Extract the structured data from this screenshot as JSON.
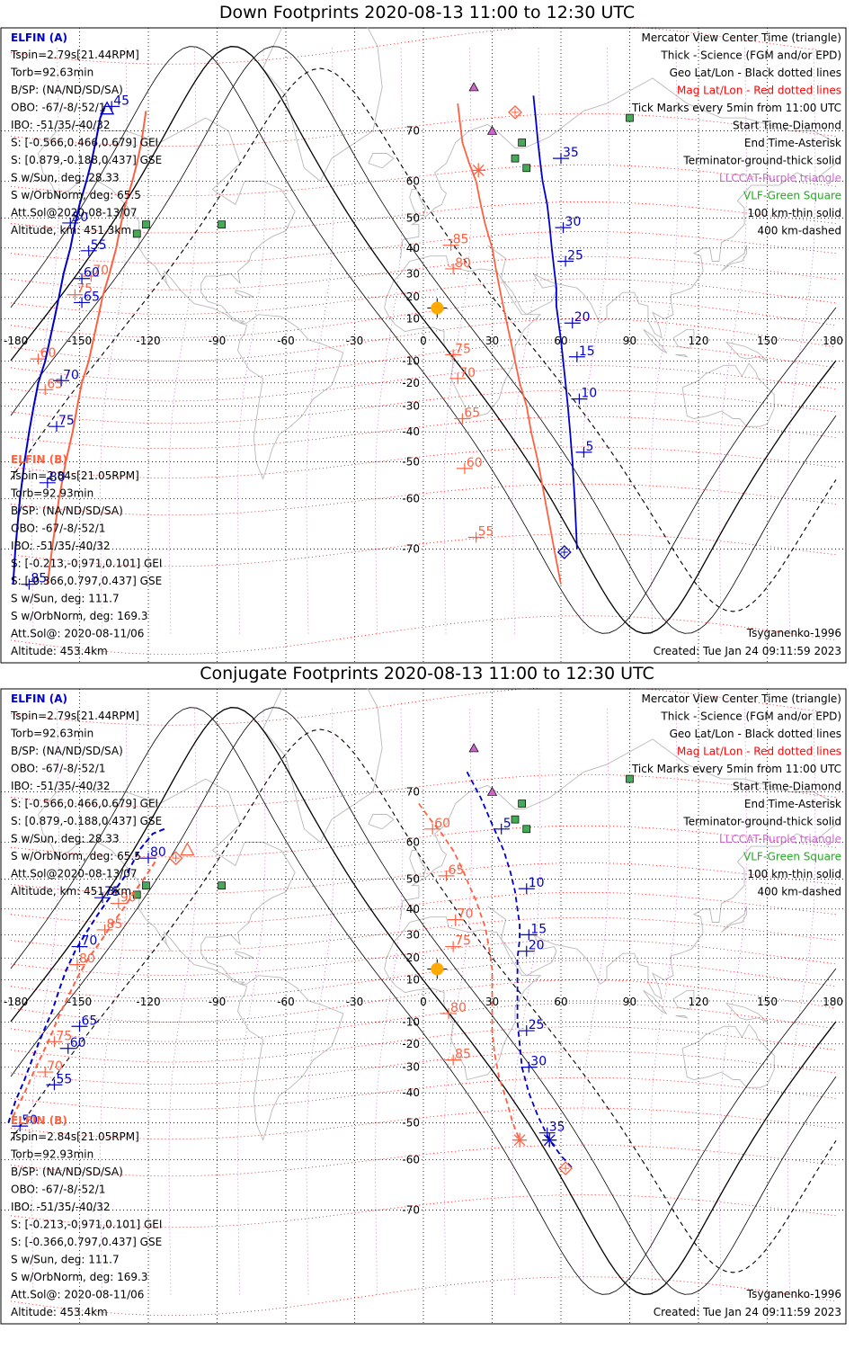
{
  "panels": [
    {
      "title": "Down Footprints 2020-08-13 11:00 to 12:30 UTC",
      "footer_model": "Tsyganenko-1996",
      "footer_created": "Created: Tue Jan 24 09:11:59 2023",
      "track_style": "solid",
      "lat_ticks": [
        "70",
        "60",
        "50",
        "40",
        "30",
        "20",
        "10",
        "-10",
        "-20",
        "-30",
        "-40",
        "-50",
        "-60",
        "-70"
      ],
      "lon_ticks": [
        "-180",
        "-150",
        "-120",
        "-90",
        "-60",
        "-30",
        "0",
        "30",
        "60",
        "90",
        "120",
        "150",
        "180"
      ],
      "track_a": {
        "points": [
          [
            -139,
            73.5
          ],
          [
            -141,
            72
          ],
          [
            -143,
            68
          ],
          [
            -145,
            64
          ],
          [
            -147,
            60
          ],
          [
            -150,
            54
          ],
          [
            -152,
            48
          ],
          [
            -154,
            40
          ],
          [
            -157,
            30
          ],
          [
            -159,
            20
          ],
          [
            -161,
            10
          ],
          [
            -163,
            0
          ],
          [
            -165,
            -10
          ],
          [
            -168,
            -20
          ],
          [
            -170,
            -30
          ],
          [
            -172,
            -40
          ],
          [
            -174,
            -50
          ],
          [
            -176,
            -60
          ],
          [
            -178,
            -70
          ],
          [
            -179,
            -75
          ]
        ],
        "labels": [
          {
            "text": "45",
            "lon": -136,
            "lat": 73.6
          },
          {
            "text": "50",
            "lon": -154,
            "lat": 48.5
          },
          {
            "text": "55",
            "lon": -146,
            "lat": 39
          },
          {
            "text": "60",
            "lon": -149,
            "lat": 28
          },
          {
            "text": "65",
            "lon": -149,
            "lat": 17.5
          },
          {
            "text": "70",
            "lon": -158,
            "lat": -19
          },
          {
            "text": "75",
            "lon": -160,
            "lat": -38
          },
          {
            "text": "80",
            "lon": -164,
            "lat": -56
          },
          {
            "text": "85",
            "lon": -172,
            "lat": -75
          }
        ]
      },
      "track_b": {
        "points": [
          [
            -121,
            73
          ],
          [
            -123,
            68
          ],
          [
            -125,
            64
          ],
          [
            -127,
            60
          ],
          [
            -130,
            54
          ],
          [
            -132,
            48
          ],
          [
            -134,
            40
          ],
          [
            -137,
            30
          ],
          [
            -140,
            20
          ],
          [
            -142,
            10
          ],
          [
            -144,
            0
          ],
          [
            -146,
            -10
          ],
          [
            -149,
            -20
          ],
          [
            -151,
            -30
          ],
          [
            -153,
            -40
          ],
          [
            -156,
            -50
          ],
          [
            -159,
            -60
          ],
          [
            -162,
            -70
          ],
          [
            -164,
            -75
          ]
        ],
        "labels": [
          {
            "text": "60",
            "lon": -168,
            "lat": -9
          },
          {
            "text": "65",
            "lon": -165,
            "lat": -23
          },
          {
            "text": "70",
            "lon": -145,
            "lat": 29
          },
          {
            "text": "75",
            "lon": -152,
            "lat": 21
          }
        ]
      },
      "track_c": {
        "points": [
          [
            15,
            74
          ],
          [
            17,
            68
          ],
          [
            20,
            64
          ],
          [
            23,
            60
          ],
          [
            25,
            54
          ],
          [
            27,
            48
          ],
          [
            30,
            40
          ],
          [
            32,
            30
          ],
          [
            34,
            20
          ],
          [
            36,
            10
          ],
          [
            38,
            0
          ],
          [
            40,
            -10
          ],
          [
            42,
            -20
          ],
          [
            45,
            -30
          ],
          [
            47,
            -40
          ],
          [
            50,
            -50
          ],
          [
            53,
            -60
          ],
          [
            57,
            -70
          ],
          [
            60,
            -75
          ]
        ],
        "labels": [
          {
            "text": "85",
            "lon": 12,
            "lat": 41
          },
          {
            "text": "80",
            "lon": 13,
            "lat": 32
          },
          {
            "text": "75",
            "lon": 13,
            "lat": -7
          },
          {
            "text": "70",
            "lon": 15,
            "lat": -18
          },
          {
            "text": "65",
            "lon": 17,
            "lat": -35
          },
          {
            "text": "60",
            "lon": 18,
            "lat": -52
          },
          {
            "text": "55",
            "lon": 23,
            "lat": -68
          }
        ]
      },
      "track_d": {
        "points": [
          [
            48,
            75
          ],
          [
            49,
            72
          ],
          [
            50,
            68
          ],
          [
            51,
            64
          ],
          [
            52,
            60
          ],
          [
            54,
            54
          ],
          [
            55,
            48
          ],
          [
            56,
            40
          ],
          [
            57,
            32
          ],
          [
            58,
            24
          ],
          [
            58,
            16
          ],
          [
            59,
            8
          ],
          [
            60,
            0
          ],
          [
            61,
            -10
          ],
          [
            62,
            -20
          ],
          [
            63,
            -30
          ],
          [
            64,
            -40
          ],
          [
            65,
            -50
          ],
          [
            66,
            -60
          ],
          [
            67,
            -70
          ]
        ],
        "labels": [
          {
            "text": "35",
            "lon": 60,
            "lat": 65
          },
          {
            "text": "30",
            "lon": 61,
            "lat": 47
          },
          {
            "text": "25",
            "lon": 62,
            "lat": 35
          },
          {
            "text": "20",
            "lon": 65,
            "lat": 8
          },
          {
            "text": "15",
            "lon": 67,
            "lat": -8
          },
          {
            "text": "10",
            "lon": 68,
            "lat": -27
          },
          {
            "text": "5",
            "lon": 70,
            "lat": -47
          }
        ]
      },
      "start_markers": [
        {
          "lon": 40,
          "lat": 72.8,
          "color": "#ff6040"
        },
        {
          "lon": 61.5,
          "lat": -70.5,
          "color": "#0000cc"
        }
      ],
      "end_markers": [
        {
          "lon": 24,
          "lat": 62.5,
          "color": "#ff6040"
        }
      ],
      "center_markers": [
        {
          "lon": -138,
          "lat": 73.2,
          "color": "#0000cc"
        }
      ],
      "sun": {
        "lon": 6,
        "lat": 15
      }
    },
    {
      "title": "Conjugate Footprints 2020-08-13 11:00 to 12:30 UTC",
      "footer_model": "Tsyganenko-1996",
      "footer_created": "Created: Tue Jan 24 09:11:59 2023",
      "track_style": "dashed",
      "lat_ticks": [
        "70",
        "60",
        "50",
        "40",
        "30",
        "20",
        "10",
        "-10",
        "-20",
        "-30",
        "-40",
        "-50",
        "-60",
        "-70"
      ],
      "lon_ticks": [
        "-180",
        "-150",
        "-120",
        "-90",
        "-60",
        "-30",
        "0",
        "30",
        "60",
        "90",
        "120",
        "150",
        "180"
      ],
      "track_a": {
        "points": [
          [
            -113,
            63
          ],
          [
            -118,
            62
          ],
          [
            -124,
            58
          ],
          [
            -129,
            52
          ],
          [
            -136,
            45
          ],
          [
            -142,
            38
          ],
          [
            -147,
            31
          ],
          [
            -152,
            23
          ],
          [
            -156,
            14
          ],
          [
            -159,
            5
          ],
          [
            -162,
            -5
          ],
          [
            -166,
            -15
          ],
          [
            -170,
            -25
          ],
          [
            -174,
            -35
          ],
          [
            -178,
            -43
          ],
          [
            -181,
            -50
          ]
        ],
        "labels": [
          {
            "text": "80",
            "lon": -120,
            "lat": 56
          },
          {
            "text": "75",
            "lon": -140,
            "lat": 44
          },
          {
            "text": "70",
            "lon": -150,
            "lat": 25
          },
          {
            "text": "65",
            "lon": -150,
            "lat": -12
          },
          {
            "text": "60",
            "lon": -155,
            "lat": -22
          },
          {
            "text": "55",
            "lon": -161,
            "lat": -37
          },
          {
            "text": "50",
            "lon": -176,
            "lat": -51
          }
        ]
      },
      "track_b": {
        "points": [
          [
            -117,
            55
          ],
          [
            -121,
            51
          ],
          [
            -126,
            46
          ],
          [
            -131,
            40
          ],
          [
            -136,
            34
          ],
          [
            -141,
            27
          ],
          [
            -146,
            20
          ],
          [
            -151,
            11
          ],
          [
            -155,
            2
          ],
          [
            -159,
            -7
          ],
          [
            -162,
            -15
          ],
          [
            -166,
            -24
          ],
          [
            -170,
            -32
          ],
          [
            -174,
            -40
          ],
          [
            -179,
            -48
          ]
        ],
        "labels": [
          {
            "text": "90",
            "lon": -133,
            "lat": 42
          },
          {
            "text": "85",
            "lon": -139,
            "lat": 32
          },
          {
            "text": "80",
            "lon": -151,
            "lat": 17
          },
          {
            "text": "75",
            "lon": -161,
            "lat": -19
          },
          {
            "text": "70",
            "lon": -165,
            "lat": -32
          }
        ]
      },
      "track_c": {
        "points": [
          [
            -2,
            68
          ],
          [
            3,
            65
          ],
          [
            8,
            62
          ],
          [
            13,
            58
          ],
          [
            17,
            53
          ],
          [
            20,
            48
          ],
          [
            23,
            43
          ],
          [
            25,
            38
          ],
          [
            27,
            33
          ],
          [
            28,
            28
          ],
          [
            29,
            22
          ],
          [
            30,
            15
          ],
          [
            30,
            6
          ],
          [
            30,
            -4
          ],
          [
            30,
            -14
          ],
          [
            31,
            -24
          ],
          [
            33,
            -34
          ],
          [
            36,
            -42
          ],
          [
            39,
            -50
          ],
          [
            42,
            -55
          ]
        ],
        "labels": [
          {
            "text": "60",
            "lon": 4,
            "lat": 63
          },
          {
            "text": "65",
            "lon": 10,
            "lat": 51
          },
          {
            "text": "70",
            "lon": 14,
            "lat": 36
          },
          {
            "text": "75",
            "lon": 13,
            "lat": 25
          },
          {
            "text": "80",
            "lon": 11,
            "lat": -6
          },
          {
            "text": "85",
            "lon": 13,
            "lat": -27
          }
        ]
      },
      "track_d": {
        "points": [
          [
            19,
            73
          ],
          [
            25,
            69
          ],
          [
            30,
            64
          ],
          [
            35,
            58
          ],
          [
            38,
            52
          ],
          [
            40,
            46
          ],
          [
            41,
            40
          ],
          [
            42,
            34
          ],
          [
            42,
            28
          ],
          [
            41,
            20
          ],
          [
            41,
            10
          ],
          [
            41,
            0
          ],
          [
            41,
            -10
          ],
          [
            42,
            -20
          ],
          [
            43,
            -30
          ],
          [
            46,
            -40
          ],
          [
            50,
            -48
          ],
          [
            55,
            -55
          ],
          [
            60,
            -59
          ],
          [
            65,
            -62
          ]
        ],
        "labels": [
          {
            "text": "5",
            "lon": 34,
            "lat": 63
          },
          {
            "text": "10",
            "lon": 45,
            "lat": 47
          },
          {
            "text": "15",
            "lon": 46,
            "lat": 30
          },
          {
            "text": "20",
            "lon": 45,
            "lat": 23
          },
          {
            "text": "25",
            "lon": 45,
            "lat": -14
          },
          {
            "text": "30",
            "lon": 46,
            "lat": -30
          },
          {
            "text": "35",
            "lon": 54,
            "lat": -53
          }
        ]
      },
      "start_markers": [
        {
          "lon": -108,
          "lat": 56,
          "color": "#ff6040"
        },
        {
          "lon": 62,
          "lat": -62,
          "color": "#ff6040"
        }
      ],
      "end_markers": [
        {
          "lon": 42,
          "lat": -55,
          "color": "#ff6040"
        },
        {
          "lon": 55,
          "lat": -55,
          "color": "#0000cc"
        }
      ],
      "center_markers": [
        {
          "lon": -103,
          "lat": 58,
          "color": "#ff6040"
        }
      ],
      "sun": {
        "lon": 6,
        "lat": 15
      }
    }
  ],
  "legend_right": [
    {
      "text": "Mercator View Center Time (triangle)",
      "color": "#000000"
    },
    {
      "text": "Thick - Science (FGM and/or EPD)",
      "color": "#000000"
    },
    {
      "text": "Geo Lat/Lon - Black dotted lines",
      "color": "#000000"
    },
    {
      "text": "Mag Lat/Lon - Red dotted lines",
      "color": "#ff0000"
    },
    {
      "text": "Tick Marks every 5min from 11:00 UTC",
      "color": "#000000"
    },
    {
      "text": "Start Time-Diamond",
      "color": "#000000"
    },
    {
      "text": "End Time-Asterisk",
      "color": "#000000"
    },
    {
      "text": "Terminator-ground-thick solid",
      "color": "#000000"
    },
    {
      "text": "LLCCAT-Purple triangle",
      "color": "#cc66cc"
    },
    {
      "text": "VLF-Green Square",
      "color": "#22aa22"
    },
    {
      "text": "100 km-thin solid",
      "color": "#000000"
    },
    {
      "text": "400 km-dashed",
      "color": "#000000"
    }
  ],
  "elfin_a": {
    "name": "ELFIN (A)",
    "color": "#0000cc",
    "lines": [
      "Tspin=2.79s[21.44RPM]",
      "Torb=92.63min",
      "B/SP: (NA/ND/SD/SA)",
      "OBO: -67/-8/-52/1",
      "IBO: -51/35/-40/32",
      "S: [-0.566,0.466,0.679] GEI",
      "S: [0.879,-0.188,0.437] GSE",
      "S w/Sun, deg: 28.33",
      "S w/OrbNorm, deg: 65.5",
      "Att.Sol@2020-08-13/07",
      "Altitude, km: 451.3km"
    ]
  },
  "elfin_b": {
    "name": "ELFIN (B)",
    "color": "#ff6040",
    "lines": [
      "Tspin=2.84s[21.05RPM]",
      "Torb=92.93min",
      "B/SP: (NA/ND/SD/SA)",
      "OBO: -67/-8/-52/1",
      "IBO: -51/35/-40/32",
      "S: [-0.213,-0.971,0.101] GEI",
      "S: [-0.366,0.797,0.437] GSE",
      "S w/Sun, deg: 111.7",
      "S w/OrbNorm, deg: 169.3",
      "Att.Sol@: 2020-08-11/06",
      "Altitude: 453.4km"
    ]
  },
  "vlf_sites": [
    [
      -125,
      45
    ],
    [
      -121,
      48
    ],
    [
      -88,
      48
    ],
    [
      40,
      65
    ],
    [
      43,
      68
    ],
    [
      45,
      63
    ],
    [
      90,
      72
    ]
  ],
  "llccat_sites": [
    [
      22,
      76
    ],
    [
      30,
      70
    ]
  ],
  "colors": {
    "track_a": "#0000cc",
    "track_b": "#ff6040",
    "geo_grid": "#000000",
    "mag_grid": "#ff0000",
    "mag_meridian": "#cc66cc",
    "coast": "#b8b8b8",
    "terminator": "#000000",
    "vlf": "#44aa55",
    "llccat": "#cc66cc",
    "sun": "#ffaa00"
  }
}
